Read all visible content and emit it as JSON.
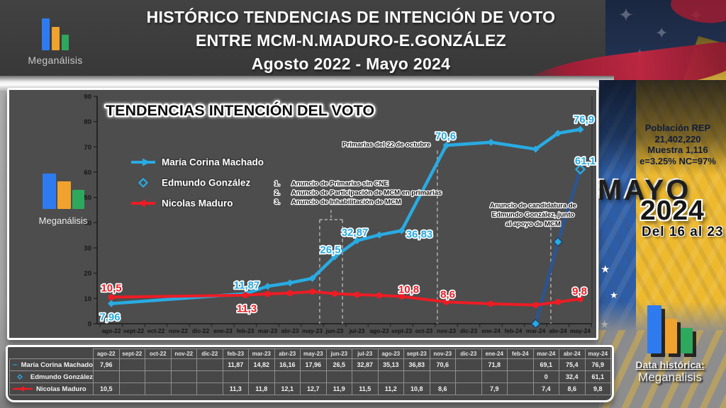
{
  "header": {
    "line1": "HISTÓRICO TENDENCIAS DE INTENCIÓN DE VOTO",
    "line2": "ENTRE MCM-N.MADURO-E.GONZÁLEZ",
    "line3": "Agosto 2022  -  Mayo 2024",
    "logo_text": "Meganálisis"
  },
  "right_panel": {
    "poblacion_line1": "Población REP",
    "poblacion_line2": "21,402,220",
    "poblacion_line3": "Muestra 1,116",
    "poblacion_line4": "e=3.25%  NC=97%",
    "month_word": "MAYO",
    "year": "2024",
    "date_range": "Del 16 al 23",
    "footer_logo_line1": "Data histórica:",
    "footer_logo_line2": "Meganalisis"
  },
  "chart": {
    "logo_text": "Meganálisis"
  },
  "colors": {
    "chart_bg": "#4d4d4d",
    "header_bg": "#3b3b3b",
    "flag_blue": "#2d5da6",
    "flag_yellow": "#edb92e",
    "logo_blue": "#2e7bf0",
    "logo_orange": "#f0a22e",
    "logo_green": "#2ea85c"
  },
  "chart_data": {
    "type": "line",
    "title": "TENDENCIAS INTENCIÓN DEL VOTO",
    "ylim": [
      0,
      90
    ],
    "y_ticks": [
      0,
      10,
      20,
      30,
      40,
      50,
      60,
      70,
      80,
      90
    ],
    "grid": false,
    "legend_position": "inside-left",
    "categories": [
      "ago-22",
      "sept-22",
      "oct-22",
      "nov-22",
      "dic-22",
      "ene-23",
      "feb-23",
      "mar-23",
      "abr-23",
      "may-23",
      "jun-23",
      "jul-23",
      "ago-23",
      "sept-23",
      "oct-23",
      "nov-23",
      "dic-23",
      "ene-24",
      "feb-24",
      "mar-24",
      "abr-24",
      "may-24"
    ],
    "series": [
      {
        "id": "edmundo",
        "name": "Edmundo González",
        "color": "#2B5592",
        "label_color": "#29ABE2",
        "marker": "diamond-cyan",
        "legend_marker": "diamond-open",
        "last_marker_open": true,
        "width": 4.5,
        "values": [
          null,
          null,
          null,
          null,
          null,
          null,
          null,
          null,
          null,
          null,
          null,
          null,
          null,
          null,
          null,
          null,
          null,
          null,
          null,
          0,
          32.4,
          61.1
        ],
        "labels": [
          {
            "i": 21,
            "text": "61,1",
            "dx": 7,
            "dy": -7,
            "anchor": "middle"
          }
        ]
      },
      {
        "id": "mcm",
        "name": "María Corina Machado",
        "color": "#29ABE2",
        "label_color": "#29ABE2",
        "marker": "diamond",
        "legend_marker": "line-arrow-right",
        "width": 4.5,
        "values": [
          7.96,
          null,
          null,
          null,
          null,
          null,
          11.87,
          14.82,
          16.16,
          17.96,
          26.5,
          32.87,
          35.13,
          36.83,
          null,
          70.6,
          null,
          71.8,
          null,
          69.1,
          75.4,
          76.9
        ],
        "labels": [
          {
            "i": 0,
            "text": "7,96",
            "dx": -2,
            "dy": 24,
            "anchor": "middle"
          },
          {
            "i": 6,
            "text": "11,87",
            "dx": 2,
            "dy": -7,
            "anchor": "middle"
          },
          {
            "i": 10,
            "text": "26,5",
            "dx": -6,
            "dy": -5,
            "anchor": "middle"
          },
          {
            "i": 11,
            "text": "32,87",
            "dx": -3,
            "dy": -7,
            "anchor": "middle"
          },
          {
            "i": 13,
            "text": "36,83",
            "dx": 25,
            "dy": 10,
            "anchor": "middle"
          },
          {
            "i": 15,
            "text": "70,6",
            "dx": -1,
            "dy": -8,
            "anchor": "middle"
          },
          {
            "i": 21,
            "text": "76,9",
            "dx": 5,
            "dy": -9,
            "anchor": "middle"
          }
        ]
      },
      {
        "id": "maduro",
        "name": "Nicolas Maduro",
        "color": "#ED1C24",
        "label_color": "#ED1C24",
        "marker": "circle",
        "legend_marker": "line-arrow-left",
        "width": 4,
        "values": [
          10.5,
          null,
          null,
          null,
          null,
          null,
          11.3,
          11.8,
          12.1,
          12.7,
          11.9,
          11.5,
          11.2,
          10.8,
          null,
          8.6,
          null,
          7.9,
          null,
          7.4,
          8.6,
          9.8
        ],
        "labels": [
          {
            "i": 0,
            "text": "10,5",
            "dx": 0,
            "dy": -8,
            "anchor": "middle"
          },
          {
            "i": 6,
            "text": "11,3",
            "dx": 2,
            "dy": 24,
            "anchor": "middle"
          },
          {
            "i": 13,
            "text": "10,8",
            "dx": 10,
            "dy": -5,
            "anchor": "middle"
          },
          {
            "i": 15,
            "text": "8,6",
            "dx": 2,
            "dy": -6,
            "anchor": "middle"
          },
          {
            "i": 21,
            "text": "9,8",
            "dx": -1,
            "dy": -6,
            "anchor": "middle"
          }
        ]
      }
    ],
    "event_lines": [
      {
        "x": 9.33,
        "y_top": 41.2
      },
      {
        "x": 10.35,
        "y_top": 41.2
      },
      {
        "x": 14.6,
        "y_top": 68.6
      },
      {
        "x": 19.68,
        "y_top": 38.4
      }
    ],
    "bracket": {
      "x1": 9.33,
      "x2": 10.35,
      "y": 41.2,
      "stub_x": 9.84,
      "stub_top": 45.0
    },
    "annotations": {
      "primarias": "Primarias del 22 de octubre",
      "list_numbers": [
        "1.",
        "2.",
        "3."
      ],
      "list": [
        "Anuncio de Primarias sin CNE",
        "Anuncio de Participación de MCM en primarias",
        "Anuncio de Inhabilitación de MCM"
      ],
      "candidatura": [
        "Anuncio de candidatura de",
        "Edmundo González, junto",
        "al apoyo de MCM"
      ]
    }
  },
  "table": {
    "columns": [
      "ago-22",
      "sept-22",
      "oct-22",
      "nov-22",
      "dic-22",
      "feb-23",
      "mar-23",
      "abr-23",
      "may-23",
      "jun-23",
      "jul-23",
      "ago-23",
      "sept-23",
      "nov-23",
      "dic-23",
      "ene-24",
      "feb-24",
      "mar-24",
      "abr-24",
      "may-24"
    ],
    "rows": [
      {
        "name": "María Corina Machado",
        "marker": "line-arrow-right",
        "color": "#29ABE2",
        "values": [
          "7,96",
          "",
          "",
          "",
          "",
          "11,87",
          "14,82",
          "16,16",
          "17,96",
          "26,5",
          "32,87",
          "35,13",
          "36,83",
          "70,6",
          "",
          "71,8",
          "",
          "69,1",
          "75,4",
          "76,9"
        ]
      },
      {
        "name": "Edmundo González",
        "marker": "diamond-open",
        "color": "#29ABE2",
        "values": [
          "",
          "",
          "",
          "",
          "",
          "",
          "",
          "",
          "",
          "",
          "",
          "",
          "",
          "",
          "",
          "",
          "",
          "0",
          "32,4",
          "61,1"
        ]
      },
      {
        "name": "Nicolas Maduro",
        "marker": "line-arrow-left",
        "color": "#ED1C24",
        "values": [
          "10,5",
          "",
          "",
          "",
          "",
          "11,3",
          "11,8",
          "12,1",
          "12,7",
          "11,9",
          "11,5",
          "11,2",
          "10,8",
          "8,6",
          "",
          "7,9",
          "",
          "7,4",
          "8,6",
          "9,8"
        ]
      }
    ]
  }
}
